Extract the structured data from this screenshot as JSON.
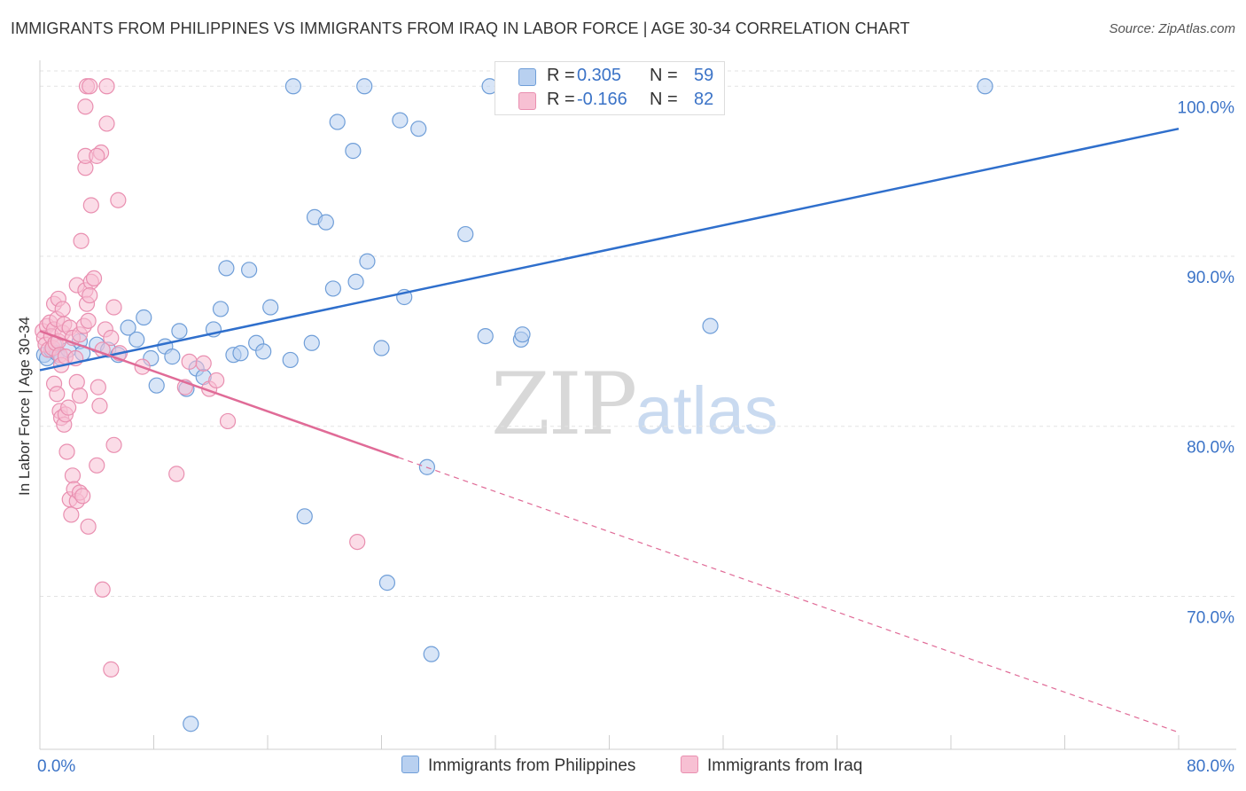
{
  "header": {
    "title": "IMMIGRANTS FROM PHILIPPINES VS IMMIGRANTS FROM IRAQ IN LABOR FORCE | AGE 30-34 CORRELATION CHART",
    "source": "Source: ZipAtlas.com"
  },
  "watermark": {
    "zip": "ZIP",
    "atlas": "atlas"
  },
  "legend": {
    "r_label": "R =",
    "n_label": "N =",
    "rows": [
      {
        "name": "Immigrants from Philippines",
        "r": "0.305",
        "n": "59"
      },
      {
        "name": "Immigrants from Iraq",
        "r": "-0.166",
        "n": "82"
      }
    ]
  },
  "colors": {
    "philippines_fill": "#b8d0f0",
    "philippines_stroke": "#6f9ed8",
    "philippines_line": "#2f6fcc",
    "iraq_fill": "#f7c0d3",
    "iraq_stroke": "#e98fb0",
    "iraq_line": "#e06b97",
    "axis_label": "#3b73c7",
    "grid": "#e3e3e3"
  },
  "chart_data": {
    "type": "scatter",
    "title": "IMMIGRANTS FROM PHILIPPINES VS IMMIGRANTS FROM IRAQ IN LABOR FORCE | AGE 30-34 CORRELATION CHART",
    "xlabel": "",
    "ylabel": "In Labor Force | Age 30-34",
    "xlim": [
      0,
      80
    ],
    "ylim": [
      61,
      100.9
    ],
    "x_tick_labels": [
      {
        "value": 0,
        "label": "0.0%"
      },
      {
        "value": 80,
        "label": "80.0%"
      }
    ],
    "x_minor_ticks": [
      8,
      16,
      24,
      32,
      40,
      48,
      56,
      64,
      72
    ],
    "y_ticks": [
      {
        "value": 70,
        "label": "70.0%"
      },
      {
        "value": 80,
        "label": "80.0%"
      },
      {
        "value": 90,
        "label": "90.0%"
      },
      {
        "value": 100,
        "label": "100.0%"
      }
    ],
    "grid": true,
    "legend_position": "top-center",
    "series": [
      {
        "name": "Immigrants from Philippines",
        "r": 0.305,
        "n": 59,
        "trend": {
          "x0": 0,
          "y0": 83.3,
          "x1": 80,
          "y1": 97.5,
          "solid_to": 80
        },
        "points": [
          [
            0.3,
            84.2
          ],
          [
            0.5,
            84.0
          ],
          [
            0.8,
            84.5
          ],
          [
            1.0,
            84.8
          ],
          [
            1.2,
            84.3
          ],
          [
            1.5,
            84.0
          ],
          [
            2.0,
            84.5
          ],
          [
            2.8,
            85.0
          ],
          [
            3.0,
            84.3
          ],
          [
            4.0,
            84.8
          ],
          [
            4.8,
            84.5
          ],
          [
            5.5,
            84.2
          ],
          [
            6.2,
            85.8
          ],
          [
            6.8,
            85.1
          ],
          [
            7.3,
            86.4
          ],
          [
            7.8,
            84.0
          ],
          [
            8.2,
            82.4
          ],
          [
            8.8,
            84.7
          ],
          [
            9.3,
            84.1
          ],
          [
            9.8,
            85.6
          ],
          [
            10.3,
            82.2
          ],
          [
            11.0,
            83.4
          ],
          [
            11.5,
            82.9
          ],
          [
            12.2,
            85.7
          ],
          [
            12.7,
            86.9
          ],
          [
            13.1,
            89.3
          ],
          [
            13.6,
            84.2
          ],
          [
            14.1,
            84.3
          ],
          [
            14.7,
            89.2
          ],
          [
            15.2,
            84.9
          ],
          [
            15.7,
            84.4
          ],
          [
            16.2,
            87.0
          ],
          [
            17.6,
            83.9
          ],
          [
            17.8,
            100.0
          ],
          [
            18.6,
            74.7
          ],
          [
            19.1,
            84.9
          ],
          [
            19.3,
            92.3
          ],
          [
            20.1,
            92.0
          ],
          [
            20.6,
            88.1
          ],
          [
            20.9,
            97.9
          ],
          [
            22.0,
            96.2
          ],
          [
            22.2,
            88.5
          ],
          [
            22.8,
            100.0
          ],
          [
            23.0,
            89.7
          ],
          [
            24.0,
            84.6
          ],
          [
            24.4,
            70.8
          ],
          [
            25.3,
            98.0
          ],
          [
            25.6,
            87.6
          ],
          [
            26.6,
            97.5
          ],
          [
            27.2,
            77.6
          ],
          [
            27.5,
            66.6
          ],
          [
            29.9,
            91.3
          ],
          [
            31.3,
            85.3
          ],
          [
            31.6,
            100.0
          ],
          [
            33.8,
            85.1
          ],
          [
            33.9,
            85.4
          ],
          [
            47.1,
            85.9
          ],
          [
            66.4,
            100.0
          ],
          [
            10.6,
            62.5
          ]
        ]
      },
      {
        "name": "Immigrants from Iraq",
        "r": -0.166,
        "n": 82,
        "trend": {
          "x0": 0,
          "y0": 85.6,
          "x1": 80,
          "y1": 62.0,
          "solid_to": 25.2
        },
        "points": [
          [
            0.2,
            85.6
          ],
          [
            0.3,
            85.2
          ],
          [
            0.4,
            84.8
          ],
          [
            0.5,
            85.9
          ],
          [
            0.6,
            84.5
          ],
          [
            0.7,
            86.1
          ],
          [
            0.8,
            85.3
          ],
          [
            0.9,
            84.6
          ],
          [
            1.0,
            85.7
          ],
          [
            1.1,
            84.9
          ],
          [
            1.2,
            86.3
          ],
          [
            1.3,
            85.0
          ],
          [
            1.4,
            84.2
          ],
          [
            1.5,
            83.6
          ],
          [
            1.6,
            85.5
          ],
          [
            1.7,
            86.0
          ],
          [
            1.8,
            84.1
          ],
          [
            1.0,
            87.2
          ],
          [
            1.3,
            87.5
          ],
          [
            1.6,
            86.9
          ],
          [
            2.1,
            85.8
          ],
          [
            2.3,
            85.2
          ],
          [
            2.5,
            84.0
          ],
          [
            2.8,
            85.4
          ],
          [
            3.1,
            85.9
          ],
          [
            3.4,
            86.2
          ],
          [
            2.6,
            88.3
          ],
          [
            3.2,
            88.0
          ],
          [
            3.6,
            88.5
          ],
          [
            3.8,
            88.7
          ],
          [
            3.3,
            87.2
          ],
          [
            3.5,
            87.7
          ],
          [
            5.2,
            87.0
          ],
          [
            4.6,
            85.7
          ],
          [
            5.0,
            85.2
          ],
          [
            4.4,
            84.5
          ],
          [
            2.9,
            90.9
          ],
          [
            3.6,
            93.0
          ],
          [
            5.5,
            93.3
          ],
          [
            3.2,
            95.2
          ],
          [
            3.2,
            95.9
          ],
          [
            4.3,
            96.1
          ],
          [
            4.0,
            95.9
          ],
          [
            4.7,
            97.8
          ],
          [
            3.2,
            98.8
          ],
          [
            3.3,
            100.0
          ],
          [
            3.5,
            100.0
          ],
          [
            4.7,
            100.0
          ],
          [
            1.0,
            82.5
          ],
          [
            1.2,
            81.9
          ],
          [
            1.4,
            80.9
          ],
          [
            1.5,
            80.5
          ],
          [
            1.7,
            80.1
          ],
          [
            1.8,
            80.7
          ],
          [
            2.0,
            81.1
          ],
          [
            2.6,
            82.6
          ],
          [
            2.8,
            81.8
          ],
          [
            4.1,
            82.3
          ],
          [
            4.2,
            81.2
          ],
          [
            5.2,
            78.9
          ],
          [
            5.6,
            84.3
          ],
          [
            7.2,
            83.5
          ],
          [
            10.2,
            82.3
          ],
          [
            10.5,
            83.8
          ],
          [
            11.5,
            83.7
          ],
          [
            11.9,
            82.2
          ],
          [
            12.4,
            82.7
          ],
          [
            13.2,
            80.3
          ],
          [
            2.3,
            77.1
          ],
          [
            2.1,
            75.7
          ],
          [
            2.4,
            76.3
          ],
          [
            2.6,
            75.6
          ],
          [
            2.8,
            76.1
          ],
          [
            3.4,
            74.1
          ],
          [
            4.0,
            77.7
          ],
          [
            4.4,
            70.4
          ],
          [
            5.0,
            65.7
          ],
          [
            9.6,
            77.2
          ],
          [
            22.3,
            73.2
          ],
          [
            3.0,
            75.9
          ],
          [
            2.2,
            74.8
          ],
          [
            1.9,
            78.5
          ]
        ]
      }
    ]
  }
}
